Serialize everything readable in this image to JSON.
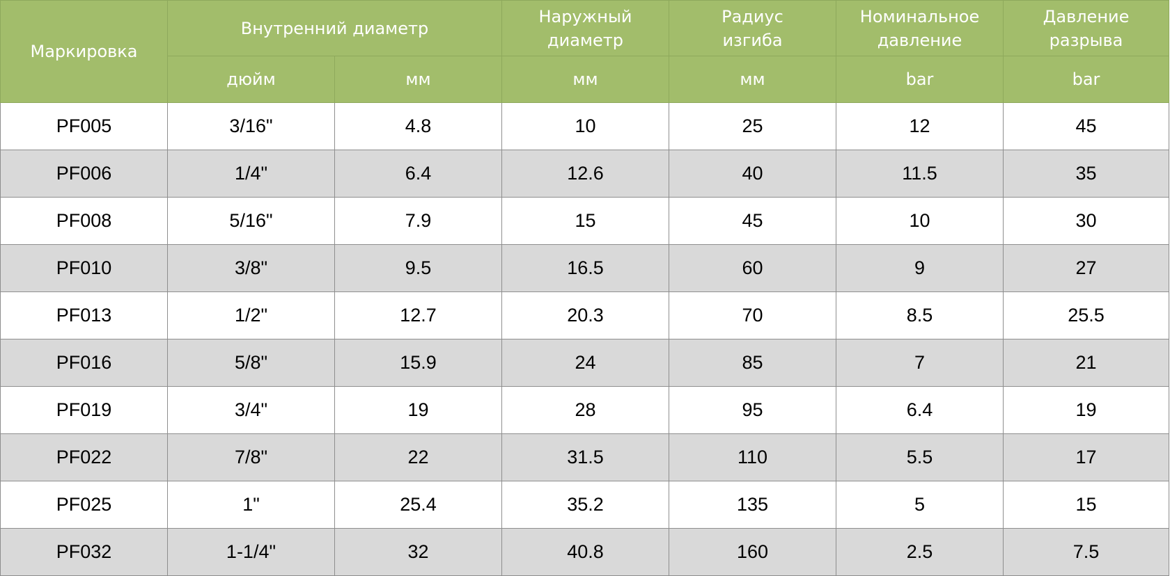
{
  "table": {
    "headers": {
      "marking": "Маркировка",
      "inner_diameter": "Внутренний диаметр",
      "outer_diameter": [
        "Наружный",
        "диаметр"
      ],
      "bend_radius": [
        "Радиус",
        "изгиба"
      ],
      "nominal_pressure": [
        "Номинальное",
        "давление"
      ],
      "burst_pressure": [
        "Давление",
        "разрыва"
      ]
    },
    "units": {
      "inner_inch": "дюйм",
      "inner_mm": "мм",
      "outer_mm": "мм",
      "bend_mm": "мм",
      "nominal_bar": "bar",
      "burst_bar": "bar"
    },
    "rows": [
      [
        "PF005",
        "3/16\"",
        "4.8",
        "10",
        "25",
        "12",
        "45"
      ],
      [
        "PF006",
        "1/4\"",
        "6.4",
        "12.6",
        "40",
        "11.5",
        "35"
      ],
      [
        "PF008",
        "5/16\"",
        "7.9",
        "15",
        "45",
        "10",
        "30"
      ],
      [
        "PF010",
        "3/8\"",
        "9.5",
        "16.5",
        "60",
        "9",
        "27"
      ],
      [
        "PF013",
        "1/2\"",
        "12.7",
        "20.3",
        "70",
        "8.5",
        "25.5"
      ],
      [
        "PF016",
        "5/8\"",
        "15.9",
        "24",
        "85",
        "7",
        "21"
      ],
      [
        "PF019",
        "3/4\"",
        "19",
        "28",
        "95",
        "6.4",
        "19"
      ],
      [
        "PF022",
        "7/8\"",
        "22",
        "31.5",
        "110",
        "5.5",
        "17"
      ],
      [
        "PF025",
        "1\"",
        "25.4",
        "35.2",
        "135",
        "5",
        "15"
      ],
      [
        "PF032",
        "1-1/4\"",
        "32",
        "40.8",
        "160",
        "2.5",
        "7.5"
      ]
    ]
  }
}
